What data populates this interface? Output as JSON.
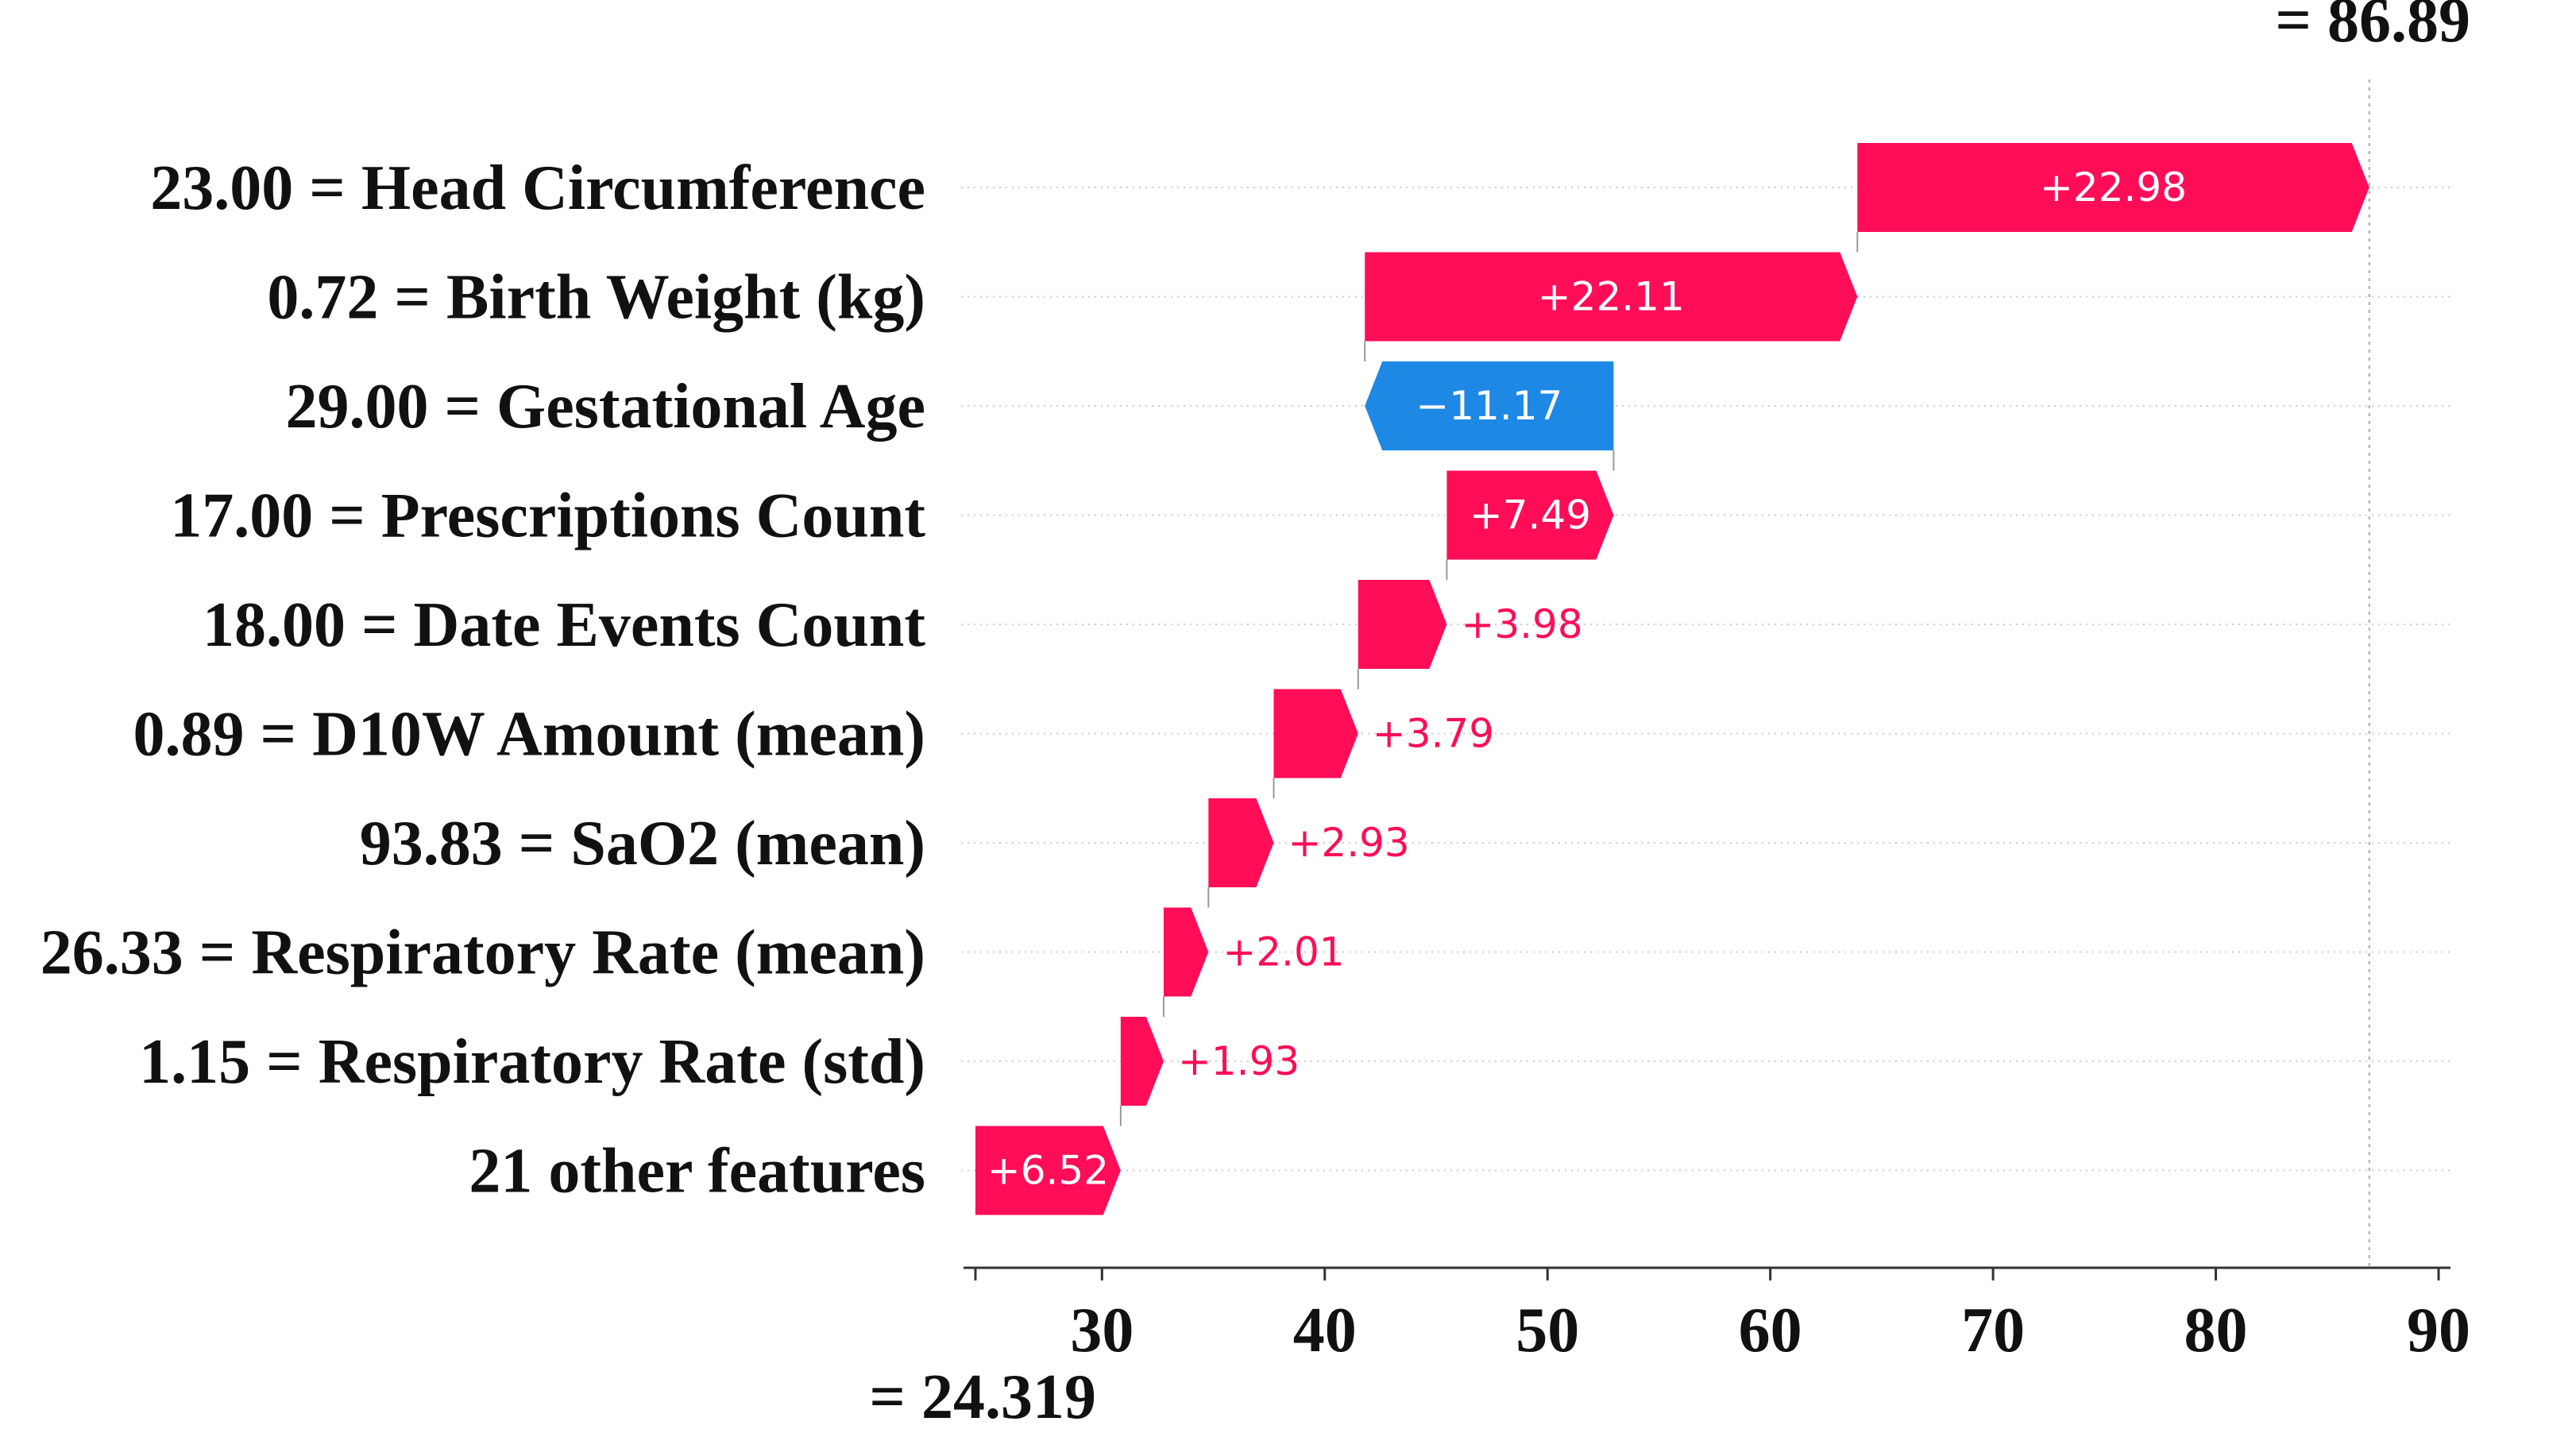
{
  "colors": {
    "positive": "#ff0d57",
    "negative": "#1e88e5",
    "axis": "#333333",
    "text": "#111111"
  },
  "chart_data": {
    "type": "waterfall",
    "title": "",
    "xlabel": "",
    "ylabel": "",
    "xlim": [
      24.319,
      90
    ],
    "xticks": [
      30,
      40,
      50,
      60,
      70,
      80,
      90
    ],
    "base_value": 24.319,
    "base_value_label": "= 24.319",
    "final_value": 86.89,
    "final_value_label": "= 86.89",
    "features": [
      {
        "label": "23.00 = Head Circumference",
        "value": 22.98,
        "value_label": "+22.98"
      },
      {
        "label": "0.72 = Birth Weight (kg)",
        "value": 22.11,
        "value_label": "+22.11"
      },
      {
        "label": "29.00 = Gestational Age",
        "value": -11.17,
        "value_label": "−11.17"
      },
      {
        "label": "17.00 = Prescriptions Count",
        "value": 7.49,
        "value_label": "+7.49"
      },
      {
        "label": "18.00 = Date Events Count",
        "value": 3.98,
        "value_label": "+3.98"
      },
      {
        "label": "0.89 = D10W Amount (mean)",
        "value": 3.79,
        "value_label": "+3.79"
      },
      {
        "label": "93.83 = SaO2 (mean)",
        "value": 2.93,
        "value_label": "+2.93"
      },
      {
        "label": "26.33 = Respiratory Rate (mean)",
        "value": 2.01,
        "value_label": "+2.01"
      },
      {
        "label": "1.15 = Respiratory Rate (std)",
        "value": 1.93,
        "value_label": "+1.93"
      },
      {
        "label": "21 other features",
        "value": 6.52,
        "value_label": "+6.52"
      }
    ]
  }
}
